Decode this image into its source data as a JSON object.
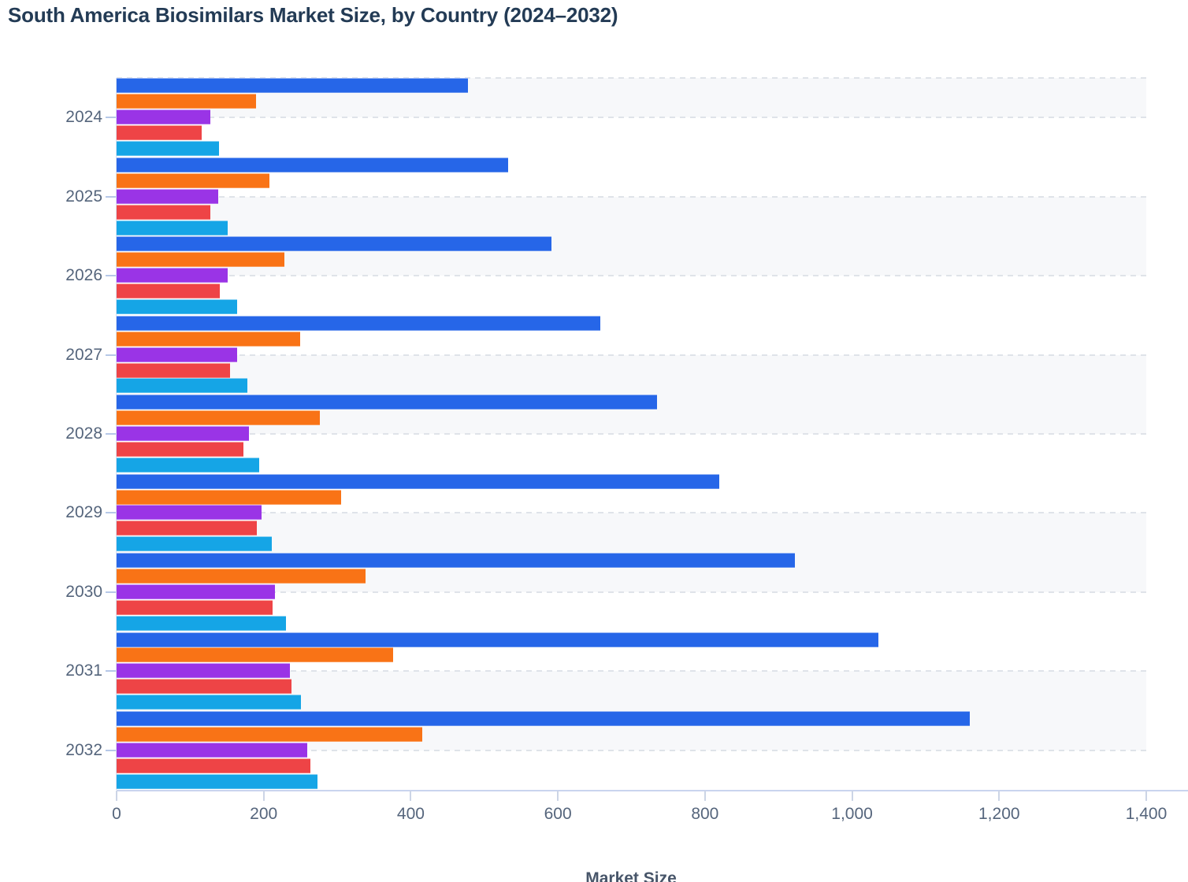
{
  "header": {
    "title": "South America Biosimilars Market Size, by Country (2024–2032)"
  },
  "chart_data": {
    "type": "bar",
    "orientation": "horizontal",
    "title": "South America Biosimilars Market Size, by Country (2024–2032)",
    "xlabel": "Market Size",
    "ylabel": "",
    "xlim": [
      0,
      1400
    ],
    "xticks": [
      0,
      200,
      400,
      600,
      800,
      1000,
      1200,
      1400
    ],
    "grid": "dashed horizontal line at each year; alternating light band shading; legend not visible (cut off below chart)",
    "categories": [
      "2024",
      "2025",
      "2026",
      "2027",
      "2028",
      "2029",
      "2030",
      "2031",
      "2032"
    ],
    "series": [
      {
        "name": "blue",
        "color": "#2666e8",
        "values": [
          478,
          532,
          591,
          658,
          735,
          819,
          922,
          1036,
          1160
        ]
      },
      {
        "name": "orange",
        "color": "#f97316",
        "values": [
          190,
          208,
          228,
          250,
          276,
          305,
          339,
          376,
          416
        ]
      },
      {
        "name": "purple",
        "color": "#9a34e6",
        "values": [
          127,
          138,
          151,
          164,
          180,
          197,
          215,
          236,
          259
        ]
      },
      {
        "name": "red",
        "color": "#ee4446",
        "values": [
          116,
          127,
          140,
          154,
          172,
          191,
          212,
          238,
          264
        ]
      },
      {
        "name": "cyan",
        "color": "#15a5e6",
        "values": [
          139,
          151,
          164,
          178,
          194,
          211,
          230,
          251,
          273
        ]
      }
    ],
    "style": {
      "title_text_color": "#233b55",
      "axis_text_color": "#55657c",
      "band_fill": "#f7f8fa",
      "gridline_color": "#dfe3e9",
      "axis_line_color": "#c9d4ee"
    }
  }
}
